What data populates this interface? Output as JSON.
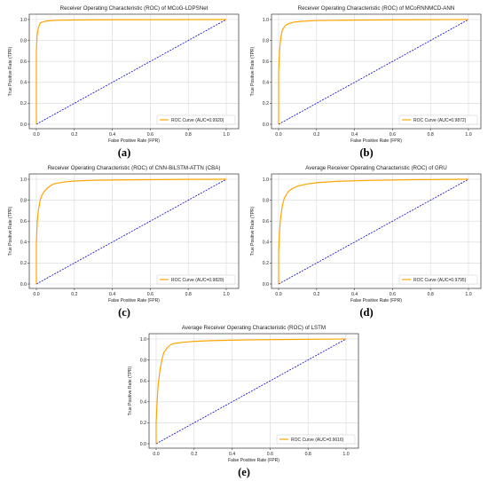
{
  "chart_data": [
    {
      "type": "line",
      "panel_label": "(a)",
      "title": "Receiver Operating Characteristic (ROC) of MCoG-LDPSNet",
      "xlabel": "False Positive Rate (FPR)",
      "ylabel": "True Positive Rate (TPR)",
      "xlim": [
        0,
        1
      ],
      "ylim": [
        0,
        1
      ],
      "x_ticks": [
        "0.0",
        "0.2",
        "0.4",
        "0.6",
        "0.8",
        "1.0"
      ],
      "y_ticks": [
        "0.0",
        "0.2",
        "0.4",
        "0.6",
        "0.8",
        "1.0"
      ],
      "grid": true,
      "legend_position": "lower-right",
      "series": [
        {
          "name": "ROC Curve (AUC=0.9920)",
          "color": "#ffa500",
          "style": "solid",
          "x": [
            0,
            0,
            0.004,
            0.008,
            0.012,
            0.016,
            0.02,
            0.03,
            0.05,
            0.08,
            0.12,
            0.2,
            0.4,
            0.7,
            1.0
          ],
          "y": [
            0,
            0.7,
            0.85,
            0.9,
            0.93,
            0.95,
            0.965,
            0.975,
            0.985,
            0.99,
            0.993,
            0.996,
            0.998,
            0.999,
            1.0
          ]
        },
        {
          "color": "#0000cd",
          "style": "dashed",
          "x": [
            0,
            1
          ],
          "y": [
            0,
            1
          ]
        }
      ]
    },
    {
      "type": "line",
      "panel_label": "(b)",
      "title": "Receiver Operating Characteristic (ROC) of MCoRNNMCD-ANN",
      "xlabel": "False Positive Rate (FPR)",
      "ylabel": "True Positive Rate (TPR)",
      "xlim": [
        0,
        1
      ],
      "ylim": [
        0,
        1
      ],
      "x_ticks": [
        "0.0",
        "0.2",
        "0.4",
        "0.6",
        "0.8",
        "1.0"
      ],
      "y_ticks": [
        "0.0",
        "0.2",
        "0.4",
        "0.6",
        "0.8",
        "1.0"
      ],
      "grid": true,
      "legend_position": "lower-right",
      "series": [
        {
          "name": "ROC Curve (AUC=0.9872)",
          "color": "#ffa500",
          "style": "solid",
          "x": [
            0,
            0,
            0.005,
            0.01,
            0.015,
            0.02,
            0.03,
            0.04,
            0.06,
            0.08,
            0.12,
            0.2,
            0.4,
            0.7,
            1.0
          ],
          "y": [
            0,
            0.5,
            0.7,
            0.8,
            0.86,
            0.9,
            0.93,
            0.95,
            0.965,
            0.975,
            0.983,
            0.99,
            0.995,
            0.998,
            1.0
          ]
        },
        {
          "color": "#0000cd",
          "style": "dashed",
          "x": [
            0,
            1
          ],
          "y": [
            0,
            1
          ]
        }
      ]
    },
    {
      "type": "line",
      "panel_label": "(c)",
      "title": "Receiver Operating Characteristic (ROC) of CNN-BiLSTM-ATTN (CBA)",
      "xlabel": "False Positive Rate (FPR)",
      "ylabel": "True Positive Rate (TPR)",
      "xlim": [
        0,
        1
      ],
      "ylim": [
        0,
        1
      ],
      "x_ticks": [
        "0.0",
        "0.2",
        "0.4",
        "0.6",
        "0.8",
        "1.0"
      ],
      "y_ticks": [
        "0.0",
        "0.2",
        "0.4",
        "0.6",
        "0.8",
        "1.0"
      ],
      "grid": true,
      "legend_position": "lower-right",
      "series": [
        {
          "name": "ROC Curve (AUC=0.9829)",
          "color": "#ffa500",
          "style": "solid",
          "x": [
            0,
            0,
            0.005,
            0.01,
            0.02,
            0.03,
            0.04,
            0.06,
            0.08,
            0.1,
            0.15,
            0.2,
            0.3,
            0.5,
            0.7,
            1.0
          ],
          "y": [
            0,
            0.4,
            0.6,
            0.7,
            0.8,
            0.85,
            0.88,
            0.92,
            0.945,
            0.96,
            0.975,
            0.983,
            0.99,
            0.995,
            0.998,
            1.0
          ]
        },
        {
          "color": "#0000cd",
          "style": "dashed",
          "x": [
            0,
            1
          ],
          "y": [
            0,
            1
          ]
        }
      ]
    },
    {
      "type": "line",
      "panel_label": "(d)",
      "title": "Average Receiver Operating Characteristic (ROC) of GRU",
      "xlabel": "False Positive Rate (FPR)",
      "ylabel": "True Positive Rate (TPR)",
      "xlim": [
        0,
        1
      ],
      "ylim": [
        0,
        1
      ],
      "x_ticks": [
        "0.0",
        "0.2",
        "0.4",
        "0.6",
        "0.8",
        "1.0"
      ],
      "y_ticks": [
        "0.0",
        "0.2",
        "0.4",
        "0.6",
        "0.8",
        "1.0"
      ],
      "grid": true,
      "legend_position": "lower-right",
      "series": [
        {
          "name": "ROC Curve (AUC=0.9795)",
          "color": "#ffa500",
          "style": "solid",
          "x": [
            0,
            0,
            0.005,
            0.01,
            0.02,
            0.03,
            0.05,
            0.07,
            0.1,
            0.15,
            0.2,
            0.3,
            0.5,
            0.7,
            1.0
          ],
          "y": [
            0,
            0.3,
            0.5,
            0.62,
            0.75,
            0.82,
            0.88,
            0.91,
            0.935,
            0.955,
            0.967,
            0.98,
            0.99,
            0.996,
            1.0
          ]
        },
        {
          "color": "#0000cd",
          "style": "dashed",
          "x": [
            0,
            1
          ],
          "y": [
            0,
            1
          ]
        }
      ]
    },
    {
      "type": "line",
      "panel_label": "(e)",
      "title": "Average Receiver Operating Characteristic (ROC) of LSTM",
      "xlabel": "False Positive Rate (FPR)",
      "ylabel": "True Positive Rate (TPR)",
      "xlim": [
        0,
        1
      ],
      "ylim": [
        0,
        1
      ],
      "x_ticks": [
        "0.0",
        "0.2",
        "0.4",
        "0.6",
        "0.8",
        "1.0"
      ],
      "y_ticks": [
        "0.0",
        "0.2",
        "0.4",
        "0.6",
        "0.8",
        "1.0"
      ],
      "grid": true,
      "legend_position": "lower-right",
      "series": [
        {
          "name": "ROC Curve (AUC=0.9616)",
          "color": "#ffa500",
          "style": "solid",
          "x": [
            0,
            0,
            0.005,
            0.01,
            0.02,
            0.03,
            0.04,
            0.06,
            0.08,
            0.1,
            0.15,
            0.2,
            0.3,
            0.5,
            0.7,
            1.0
          ],
          "y": [
            0,
            0.2,
            0.4,
            0.55,
            0.7,
            0.8,
            0.87,
            0.92,
            0.95,
            0.96,
            0.97,
            0.978,
            0.985,
            0.992,
            0.996,
            1.0
          ]
        },
        {
          "color": "#0000cd",
          "style": "dashed",
          "x": [
            0,
            1
          ],
          "y": [
            0,
            1
          ]
        }
      ]
    }
  ]
}
